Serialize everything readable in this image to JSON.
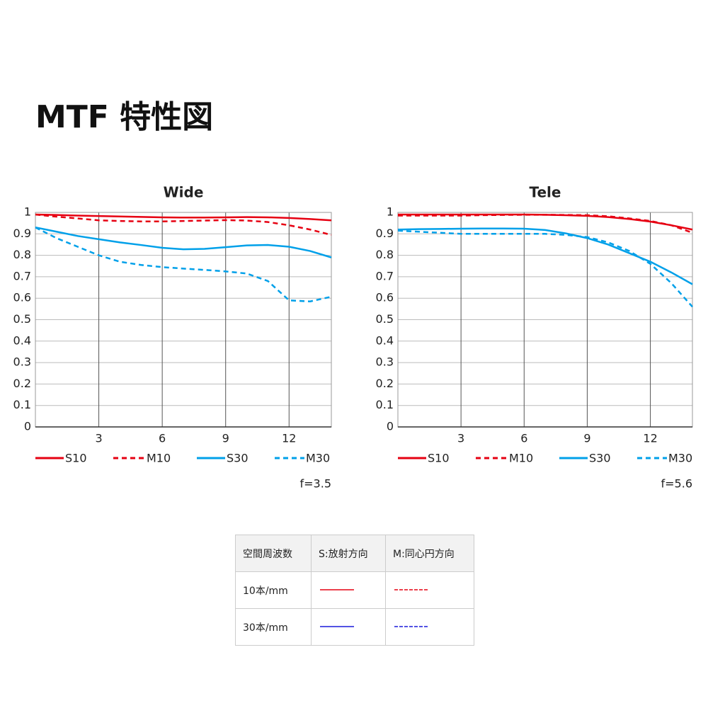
{
  "title": "MTF 特性図",
  "chart_data": [
    {
      "type": "line",
      "title": "Wide",
      "note": "f=3.5",
      "x": [
        0,
        1,
        2,
        3,
        4,
        5,
        6,
        7,
        8,
        9,
        10,
        11,
        12,
        13,
        14
      ],
      "xlim": [
        0,
        14
      ],
      "xticks": [
        3,
        6,
        9,
        12
      ],
      "ylim": [
        0,
        1
      ],
      "yticks": [
        0,
        0.1,
        0.2,
        0.3,
        0.4,
        0.5,
        0.6,
        0.7,
        0.8,
        0.9,
        1
      ],
      "grid": true,
      "series": [
        {
          "name": "S10",
          "color": "#e60012",
          "dashed": false,
          "values": [
            0.99,
            0.988,
            0.985,
            0.983,
            0.981,
            0.979,
            0.977,
            0.976,
            0.976,
            0.977,
            0.978,
            0.977,
            0.974,
            0.969,
            0.963
          ]
        },
        {
          "name": "M10",
          "color": "#e60012",
          "dashed": true,
          "values": [
            0.99,
            0.98,
            0.972,
            0.963,
            0.96,
            0.958,
            0.958,
            0.96,
            0.962,
            0.964,
            0.962,
            0.955,
            0.94,
            0.92,
            0.895
          ]
        },
        {
          "name": "S30",
          "color": "#00a0e9",
          "dashed": false,
          "values": [
            0.93,
            0.91,
            0.89,
            0.875,
            0.86,
            0.848,
            0.835,
            0.828,
            0.83,
            0.838,
            0.846,
            0.848,
            0.84,
            0.82,
            0.79
          ]
        },
        {
          "name": "M30",
          "color": "#00a0e9",
          "dashed": true,
          "values": [
            0.93,
            0.88,
            0.84,
            0.8,
            0.77,
            0.755,
            0.745,
            0.738,
            0.732,
            0.725,
            0.715,
            0.68,
            0.59,
            0.585,
            0.607
          ]
        }
      ]
    },
    {
      "type": "line",
      "title": "Tele",
      "note": "f=5.6",
      "x": [
        0,
        1,
        2,
        3,
        4,
        5,
        6,
        7,
        8,
        9,
        10,
        11,
        12,
        13,
        14
      ],
      "xlim": [
        0,
        14
      ],
      "xticks": [
        3,
        6,
        9,
        12
      ],
      "ylim": [
        0,
        1
      ],
      "yticks": [
        0,
        0.1,
        0.2,
        0.3,
        0.4,
        0.5,
        0.6,
        0.7,
        0.8,
        0.9,
        1
      ],
      "grid": true,
      "series": [
        {
          "name": "S10",
          "color": "#e60012",
          "dashed": false,
          "values": [
            0.99,
            0.99,
            0.99,
            0.99,
            0.99,
            0.99,
            0.99,
            0.989,
            0.987,
            0.984,
            0.978,
            0.969,
            0.957,
            0.94,
            0.92
          ]
        },
        {
          "name": "M10",
          "color": "#e60012",
          "dashed": true,
          "values": [
            0.985,
            0.985,
            0.985,
            0.985,
            0.987,
            0.988,
            0.989,
            0.989,
            0.988,
            0.987,
            0.982,
            0.972,
            0.96,
            0.94,
            0.905
          ]
        },
        {
          "name": "S30",
          "color": "#00a0e9",
          "dashed": false,
          "values": [
            0.92,
            0.922,
            0.923,
            0.924,
            0.925,
            0.925,
            0.924,
            0.918,
            0.902,
            0.88,
            0.85,
            0.81,
            0.77,
            0.72,
            0.665
          ]
        },
        {
          "name": "M30",
          "color": "#00a0e9",
          "dashed": true,
          "values": [
            0.915,
            0.91,
            0.905,
            0.9,
            0.9,
            0.9,
            0.9,
            0.9,
            0.895,
            0.885,
            0.86,
            0.82,
            0.76,
            0.67,
            0.56
          ]
        }
      ]
    }
  ],
  "table": {
    "header": [
      "空間周波数",
      "S:放射方向",
      "M:同心円方向"
    ],
    "rows": [
      [
        "10本/mm"
      ],
      [
        "30本/mm"
      ]
    ]
  }
}
